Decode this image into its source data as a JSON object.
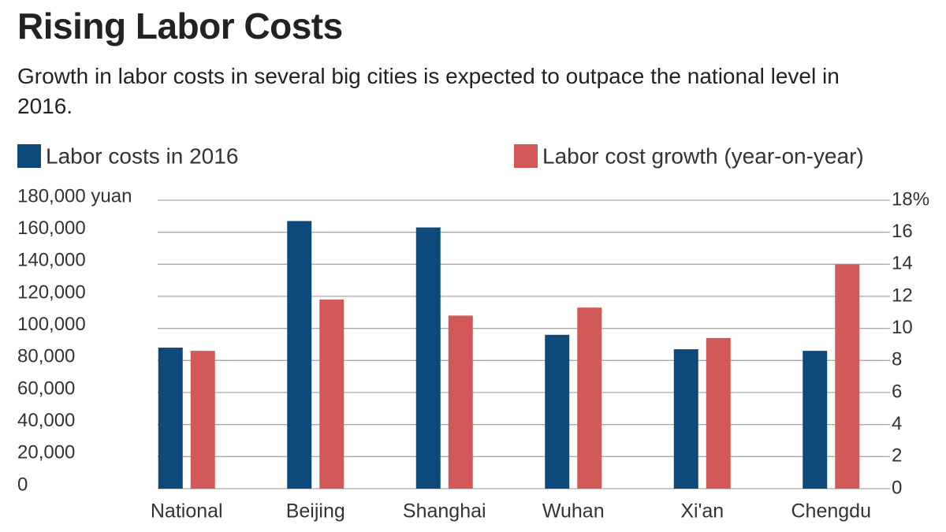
{
  "chart_data": {
    "type": "bar",
    "title": "Rising Labor Costs",
    "subtitle": "Growth in labor costs in several big cities is expected to outpace the national level in 2016.",
    "categories": [
      "National",
      "Beijing",
      "Shanghai",
      "Wuhan",
      "Xi'an",
      "Chengdu"
    ],
    "series": [
      {
        "name": "Labor costs in 2016",
        "color": "#0d4a7b",
        "values": [
          88000,
          167000,
          163000,
          96000,
          87000,
          86000
        ]
      },
      {
        "name": "Labor cost growth (year-on-year)",
        "color": "#d35858",
        "axis": "y2",
        "values": [
          8.6,
          11.8,
          10.8,
          11.3,
          9.4,
          14.0
        ]
      }
    ],
    "ylim": [
      0,
      180000
    ],
    "yticks": [
      0,
      {
        "value": 20000,
        "label": "20,000"
      },
      {
        "value": 40000,
        "label": "40,000"
      },
      {
        "value": 60000,
        "label": "60,000"
      },
      {
        "value": 80000,
        "label": "80,000"
      },
      {
        "value": 100000,
        "label": "100,000"
      },
      {
        "value": 120000,
        "label": "120,000"
      },
      {
        "value": 140000,
        "label": "140,000"
      },
      {
        "value": 160000,
        "label": "160,000"
      },
      {
        "value": 180000,
        "label": "180,000 yuan"
      }
    ],
    "y2lim": [
      0,
      18
    ],
    "y2ticks": [
      0,
      2,
      4,
      6,
      8,
      10,
      12,
      14,
      16,
      {
        "value": 18,
        "label": "18%"
      }
    ],
    "grid": true,
    "legend": "top"
  }
}
